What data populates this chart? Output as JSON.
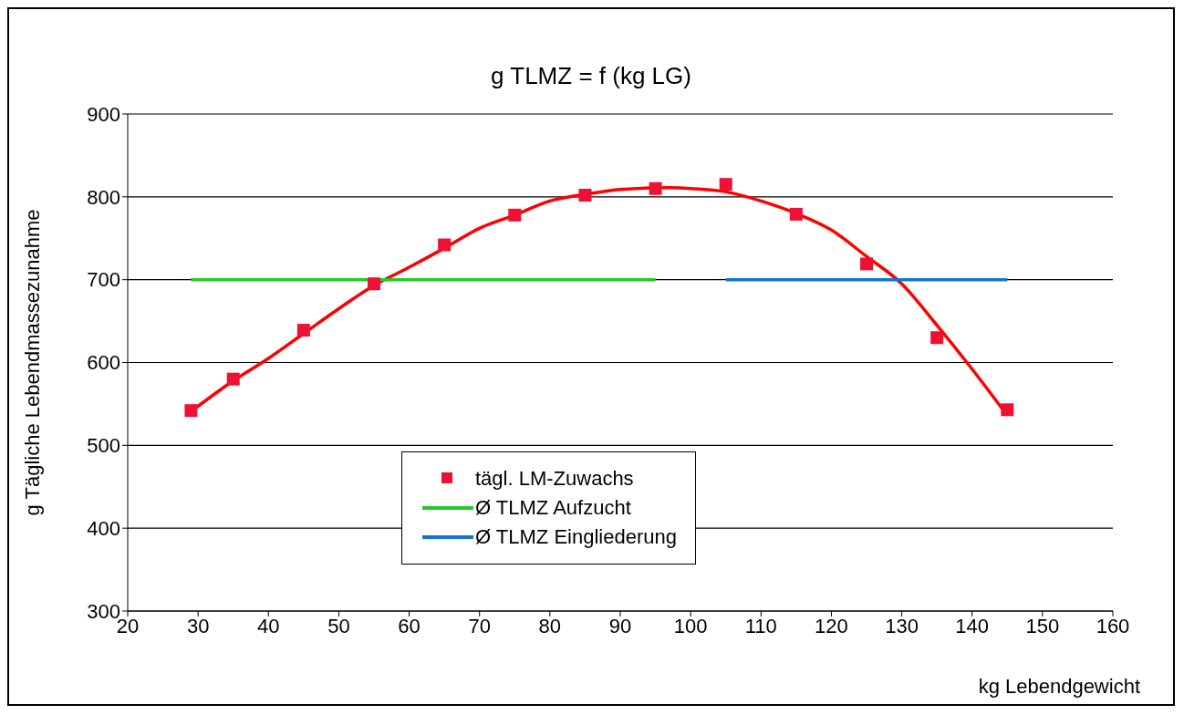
{
  "chart_data": {
    "type": "scatter",
    "title": "g TLMZ = f (kg LG)",
    "xlabel": "kg Lebendgewicht",
    "ylabel": "g Tägliche Lebendmassezunahme",
    "xlim": [
      20,
      160
    ],
    "xticks": [
      20,
      30,
      40,
      50,
      60,
      70,
      80,
      90,
      100,
      110,
      120,
      130,
      140,
      150,
      160
    ],
    "ylim": [
      300,
      900
    ],
    "yticks": [
      300,
      400,
      500,
      600,
      700,
      800,
      900
    ],
    "grid": "y",
    "legend": "bottom",
    "marker": "square",
    "series": [
      {
        "name": "tägl. LM-Zuwachs",
        "color": "#ee1133",
        "x": [
          29,
          35,
          45,
          55,
          65,
          75,
          85,
          95,
          105,
          115,
          125,
          135,
          145
        ],
        "values": [
          542,
          580,
          639,
          695,
          742,
          778,
          802,
          810,
          815,
          779,
          719,
          630,
          543
        ]
      },
      {
        "type": "line",
        "color": "#ff0000",
        "marker": "none",
        "x": [
          29,
          35,
          40,
          45,
          50,
          55,
          60,
          65,
          70,
          75,
          80,
          85,
          90,
          97,
          100,
          105,
          110,
          115,
          120,
          125,
          130,
          135,
          140,
          145
        ],
        "values": [
          541,
          578,
          605,
          635,
          665,
          693,
          715,
          738,
          762,
          778,
          795,
          803,
          809,
          811,
          810,
          806,
          795,
          780,
          760,
          728,
          695,
          645,
          592,
          536
        ]
      },
      {
        "name": "Ø TLMZ Aufzucht",
        "type": "line",
        "color": "#22cc22",
        "marker": "none",
        "x": [
          29,
          95
        ],
        "values": [
          700,
          700
        ]
      },
      {
        "name": "Ø TLMZ Eingliederung",
        "type": "line",
        "color": "#1177cc",
        "marker": "none",
        "x": [
          105,
          145
        ],
        "values": [
          700,
          700
        ]
      }
    ]
  }
}
